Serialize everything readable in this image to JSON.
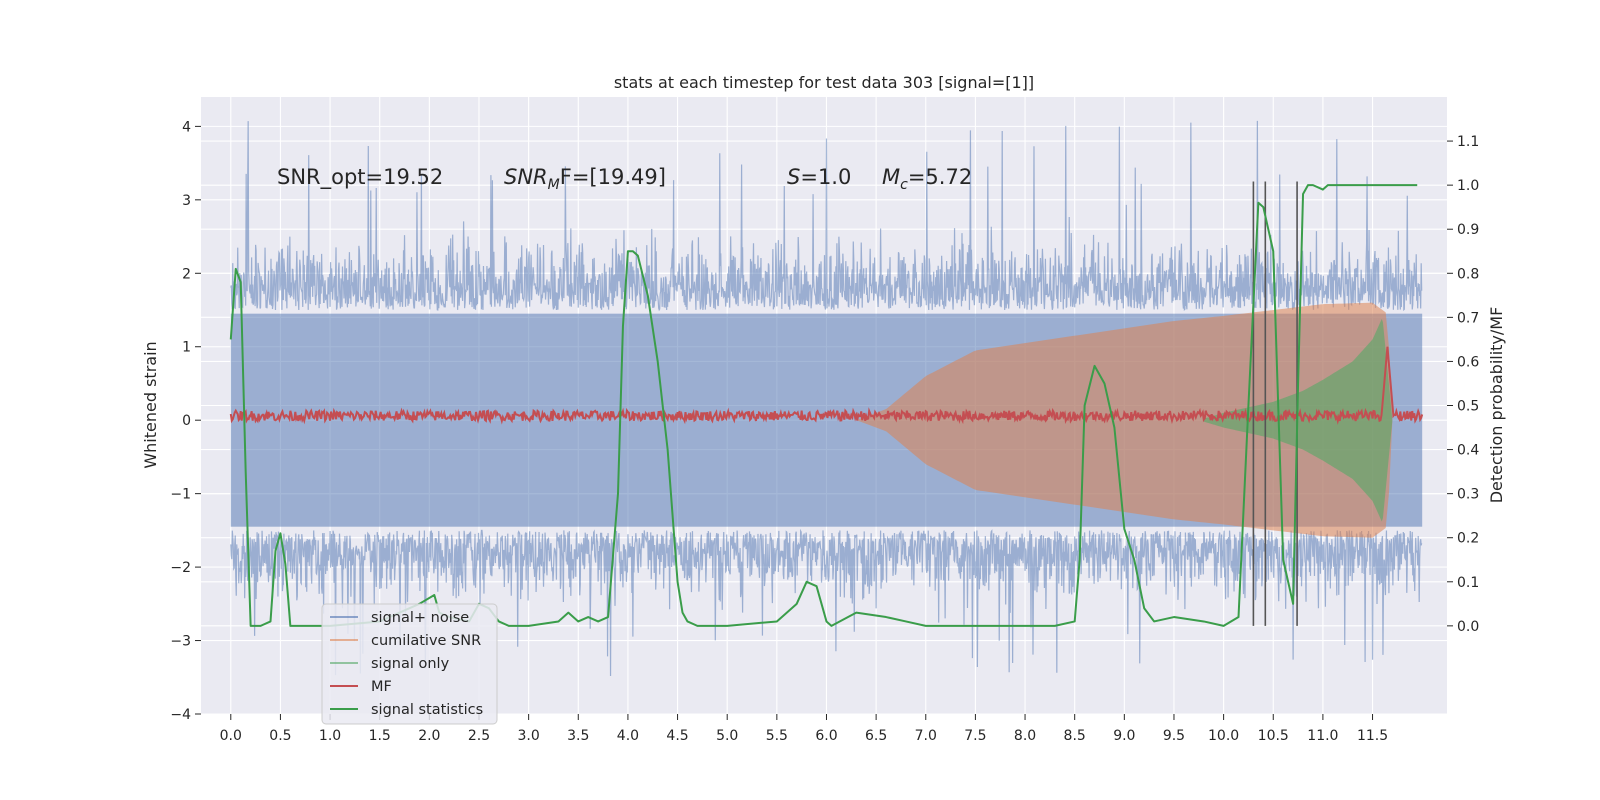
{
  "chart_data": {
    "type": "line",
    "title": "stats at each timestep for test data 303 [signal=[1]]",
    "ylabel": "Whitened strain",
    "ylabel_right": "Detection probability/MF",
    "xlim": [
      -0.3,
      12.25
    ],
    "ylim": [
      -4.0,
      4.4
    ],
    "ylim_right": [
      -0.2,
      1.2
    ],
    "x_ticks": [
      "0.0",
      "0.5",
      "1.0",
      "1.5",
      "2.0",
      "2.5",
      "3.0",
      "3.5",
      "4.0",
      "4.5",
      "5.0",
      "5.5",
      "6.0",
      "6.5",
      "7.0",
      "7.5",
      "8.0",
      "8.5",
      "9.0",
      "9.5",
      "10.0",
      "10.5",
      "11.0",
      "11.5"
    ],
    "y_ticks_left": [
      "4",
      "3",
      "2",
      "1",
      "0",
      "−1",
      "−2",
      "−3",
      "−4"
    ],
    "y_ticks_right": [
      "1.1",
      "1.0",
      "0.9",
      "0.8",
      "0.7",
      "0.6",
      "0.5",
      "0.4",
      "0.3",
      "0.2",
      "0.1",
      "0.0"
    ],
    "grid": true,
    "legend_position": "lower-left",
    "annotations": {
      "snr_opt": "SNR_opt=19.52",
      "snr_mf_prefix": "SNR",
      "snr_mf_sub": "M",
      "snr_mf_suffix": "F=[19.49]",
      "s_var": "S",
      "s_val": "=1.0",
      "mc_var": "M",
      "mc_sub": "c",
      "mc_val": "=5.72"
    },
    "colors": {
      "background": "#eaeaf2",
      "grid": "#ffffff",
      "signal_noise": "#4c72b0",
      "cumulative_snr": "#dd8452",
      "signal_only": "#55a868",
      "mf": "#c44e52",
      "signal_statistics": "#3a9d4a",
      "vlines": "#555555"
    },
    "series": [
      {
        "name": "signal+ noise",
        "style": "noise-band",
        "x_range": [
          0.0,
          12.0
        ],
        "envelope": 2.0,
        "peak": 4.1
      },
      {
        "name": "cumilative SNR",
        "style": "chirp-envelope",
        "x": [
          6.3,
          6.6,
          7.0,
          7.5,
          8.0,
          8.5,
          9.0,
          9.5,
          10.0,
          10.5,
          11.0,
          11.5,
          11.65,
          11.7
        ],
        "values": [
          0.0,
          0.15,
          0.6,
          0.95,
          1.05,
          1.15,
          1.25,
          1.35,
          1.42,
          1.5,
          1.58,
          1.6,
          1.45,
          0.0
        ]
      },
      {
        "name": "signal only",
        "style": "chirp-envelope",
        "x": [
          9.8,
          10.0,
          10.5,
          10.8,
          11.0,
          11.3,
          11.5,
          11.6,
          11.7
        ],
        "values": [
          0.02,
          0.1,
          0.25,
          0.4,
          0.55,
          0.8,
          1.1,
          1.4,
          0.0
        ]
      },
      {
        "name": "MF",
        "style": "noise-line",
        "x_range": [
          0.0,
          12.0
        ],
        "level": 0.06,
        "amplitude": 0.07,
        "spike_x": 11.65,
        "spike_value": 1.0
      },
      {
        "name": "signal statistics",
        "style": "line",
        "x": [
          0.0,
          0.05,
          0.1,
          0.15,
          0.2,
          0.3,
          0.4,
          0.45,
          0.5,
          0.55,
          0.6,
          0.7,
          1.0,
          1.5,
          1.9,
          2.05,
          2.1,
          2.2,
          2.4,
          2.5,
          2.6,
          2.7,
          2.8,
          3.0,
          3.3,
          3.4,
          3.5,
          3.6,
          3.7,
          3.8,
          3.9,
          3.95,
          4.0,
          4.05,
          4.1,
          4.2,
          4.3,
          4.4,
          4.5,
          4.55,
          4.6,
          4.7,
          5.0,
          5.5,
          5.7,
          5.8,
          5.9,
          6.0,
          6.05,
          6.3,
          6.6,
          6.8,
          7.0,
          7.5,
          8.0,
          8.3,
          8.5,
          8.55,
          8.6,
          8.7,
          8.8,
          8.9,
          9.0,
          9.1,
          9.2,
          9.3,
          9.5,
          9.8,
          10.0,
          10.15,
          10.25,
          10.35,
          10.4,
          10.5,
          10.6,
          10.7,
          10.75,
          10.8,
          10.85,
          10.9,
          11.0,
          11.05,
          11.2,
          11.5,
          11.95
        ],
        "values": [
          0.65,
          0.81,
          0.78,
          0.35,
          0.0,
          0.0,
          0.01,
          0.17,
          0.21,
          0.14,
          0.0,
          0.0,
          0.0,
          0.01,
          0.05,
          0.07,
          0.03,
          0.02,
          0.01,
          0.05,
          0.04,
          0.01,
          0.0,
          0.0,
          0.01,
          0.03,
          0.01,
          0.02,
          0.01,
          0.02,
          0.3,
          0.68,
          0.85,
          0.85,
          0.84,
          0.75,
          0.6,
          0.4,
          0.1,
          0.03,
          0.01,
          0.0,
          0.0,
          0.01,
          0.05,
          0.1,
          0.09,
          0.01,
          0.0,
          0.03,
          0.02,
          0.01,
          0.0,
          0.0,
          0.0,
          0.0,
          0.01,
          0.15,
          0.5,
          0.59,
          0.55,
          0.45,
          0.22,
          0.15,
          0.04,
          0.01,
          0.02,
          0.01,
          0.0,
          0.02,
          0.5,
          0.96,
          0.95,
          0.85,
          0.15,
          0.05,
          0.55,
          0.98,
          1.0,
          1.0,
          0.99,
          1.0,
          1.0,
          1.0,
          1.0
        ]
      }
    ],
    "vertical_lines_x": [
      10.3,
      10.42,
      10.74
    ],
    "vertical_lines_span": [
      -2.8,
      3.25
    ]
  }
}
